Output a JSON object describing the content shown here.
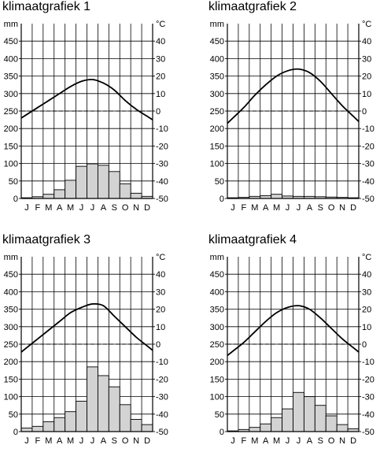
{
  "chart_data": [
    {
      "type": "bar",
      "title": "klimaatgrafiek 1",
      "categories": [
        "J",
        "F",
        "M",
        "A",
        "M",
        "J",
        "J",
        "A",
        "S",
        "O",
        "N",
        "D"
      ],
      "y_left_label": "mm",
      "y_right_label": "°C",
      "y_left_ticks": [
        "0",
        "50",
        "100",
        "150",
        "200",
        "250",
        "300",
        "350",
        "400",
        "450"
      ],
      "y_right_ticks": [
        "-50",
        "-40",
        "-30",
        "-20",
        "-10",
        "0",
        "10",
        "20",
        "30",
        "40"
      ],
      "ylim_left": [
        0,
        500
      ],
      "ylim_right": [
        -50,
        50
      ],
      "precipitation_mm": [
        2,
        5,
        12,
        25,
        52,
        92,
        99,
        95,
        77,
        42,
        15,
        6
      ],
      "temperature_c": [
        -2,
        2,
        6,
        10,
        14,
        17,
        18,
        16,
        12,
        6,
        1,
        -3
      ],
      "reference_line_c": 0
    },
    {
      "type": "bar",
      "title": "klimaatgrafiek 2",
      "categories": [
        "J",
        "F",
        "M",
        "A",
        "M",
        "J",
        "J",
        "A",
        "S",
        "O",
        "N",
        "D"
      ],
      "y_left_label": "mm",
      "y_right_label": "°C",
      "y_left_ticks": [
        "0",
        "50",
        "100",
        "150",
        "200",
        "250",
        "300",
        "350",
        "400",
        "450"
      ],
      "y_right_ticks": [
        "-50",
        "-40",
        "-30",
        "-20",
        "-10",
        "0",
        "10",
        "20",
        "30",
        "40"
      ],
      "ylim_left": [
        0,
        500
      ],
      "ylim_right": [
        -50,
        50
      ],
      "precipitation_mm": [
        2,
        3,
        6,
        8,
        12,
        7,
        6,
        6,
        5,
        4,
        3,
        2
      ],
      "temperature_c": [
        -4,
        2,
        9,
        15,
        20,
        23,
        24,
        22,
        17,
        10,
        3,
        -3
      ],
      "reference_line_c": 0
    },
    {
      "type": "bar",
      "title": "klimaatgrafiek 3",
      "categories": [
        "J",
        "F",
        "M",
        "A",
        "M",
        "J",
        "J",
        "A",
        "S",
        "O",
        "N",
        "D"
      ],
      "y_left_label": "mm",
      "y_right_label": "°C",
      "y_left_ticks": [
        "0",
        "50",
        "100",
        "150",
        "200",
        "250",
        "300",
        "350",
        "400",
        "450"
      ],
      "y_right_ticks": [
        "-50",
        "-40",
        "-30",
        "-20",
        "-10",
        "0",
        "10",
        "20",
        "30",
        "40"
      ],
      "ylim_left": [
        0,
        500
      ],
      "ylim_right": [
        -50,
        50
      ],
      "precipitation_mm": [
        10,
        15,
        28,
        40,
        57,
        87,
        185,
        160,
        128,
        77,
        35,
        20
      ],
      "temperature_c": [
        -2,
        3,
        8,
        13,
        18,
        21,
        23,
        22,
        16,
        10,
        4,
        -1
      ],
      "reference_line_c": 0
    },
    {
      "type": "bar",
      "title": "klimaatgrafiek 4",
      "categories": [
        "J",
        "F",
        "M",
        "A",
        "M",
        "J",
        "J",
        "A",
        "S",
        "O",
        "N",
        "D"
      ],
      "y_left_label": "mm",
      "y_right_label": "°C",
      "y_left_ticks": [
        "0",
        "50",
        "100",
        "150",
        "200",
        "250",
        "300",
        "350",
        "400",
        "450"
      ],
      "y_right_ticks": [
        "-50",
        "-40",
        "-30",
        "-20",
        "-10",
        "0",
        "10",
        "20",
        "30",
        "40"
      ],
      "ylim_left": [
        0,
        500
      ],
      "ylim_right": [
        -50,
        50
      ],
      "precipitation_mm": [
        2,
        6,
        12,
        22,
        40,
        65,
        112,
        100,
        75,
        45,
        20,
        8
      ],
      "temperature_c": [
        -4,
        1,
        7,
        13,
        18,
        21,
        22,
        20,
        15,
        9,
        3,
        -2
      ],
      "reference_line_c": 0
    }
  ]
}
